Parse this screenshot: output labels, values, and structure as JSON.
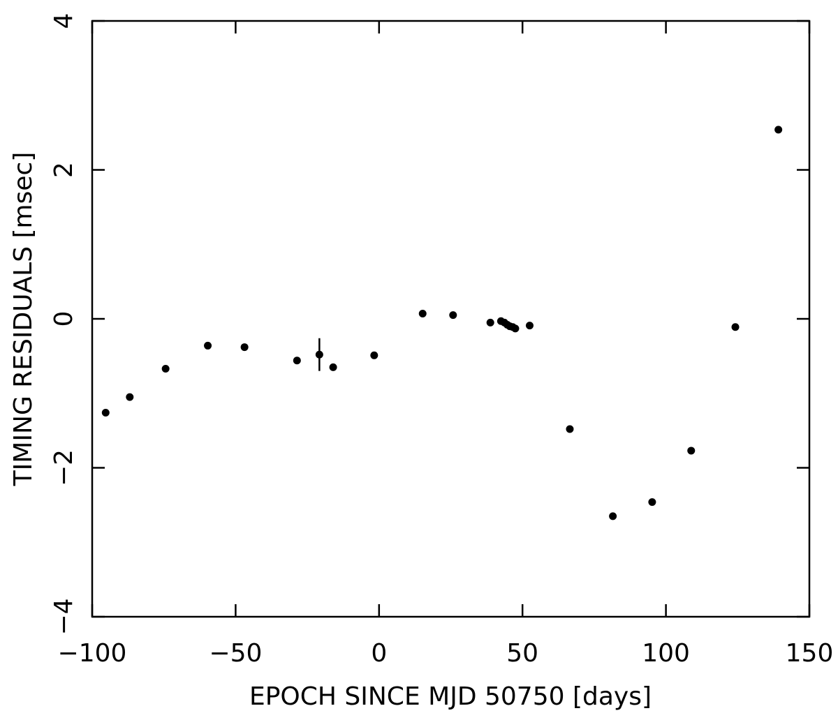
{
  "chart_data": {
    "type": "scatter",
    "title": "",
    "xlabel": "EPOCH SINCE MJD 50750 [days]",
    "ylabel": "TIMING RESIDUALS [msec]",
    "xlim": [
      -100,
      150
    ],
    "ylim": [
      -4,
      4
    ],
    "xticks": [
      -100,
      -50,
      0,
      50,
      100,
      150
    ],
    "yticks": [
      -4,
      -2,
      0,
      2,
      4
    ],
    "xtick_labels": [
      "−100",
      "−50",
      "0",
      "50",
      "100",
      "150"
    ],
    "ytick_labels": [
      "−4",
      "−2",
      "0",
      "2",
      "4"
    ],
    "grid": false,
    "legend": "none",
    "series": [
      {
        "points": [
          {
            "x": -95.3,
            "y": -1.26
          },
          {
            "x": -86.9,
            "y": -1.05
          },
          {
            "x": -74.4,
            "y": -0.67
          },
          {
            "x": -59.7,
            "y": -0.36
          },
          {
            "x": -46.9,
            "y": -0.38
          },
          {
            "x": -28.6,
            "y": -0.56
          },
          {
            "x": -20.8,
            "y": -0.48,
            "yerr": 0.22
          },
          {
            "x": -16.0,
            "y": -0.65
          },
          {
            "x": -1.7,
            "y": -0.49
          },
          {
            "x": 15.2,
            "y": 0.07
          },
          {
            "x": 25.8,
            "y": 0.05
          },
          {
            "x": 38.8,
            "y": -0.05
          },
          {
            "x": 42.5,
            "y": -0.03
          },
          {
            "x": 43.7,
            "y": -0.05
          },
          {
            "x": 44.7,
            "y": -0.08
          },
          {
            "x": 45.6,
            "y": -0.1
          },
          {
            "x": 46.6,
            "y": -0.11
          },
          {
            "x": 47.5,
            "y": -0.13
          },
          {
            "x": 52.5,
            "y": -0.09
          },
          {
            "x": 66.5,
            "y": -1.48
          },
          {
            "x": 81.5,
            "y": -2.65
          },
          {
            "x": 95.2,
            "y": -2.46
          },
          {
            "x": 108.8,
            "y": -1.77
          },
          {
            "x": 124.2,
            "y": -0.11
          },
          {
            "x": 139.2,
            "y": 2.54
          }
        ]
      }
    ]
  }
}
